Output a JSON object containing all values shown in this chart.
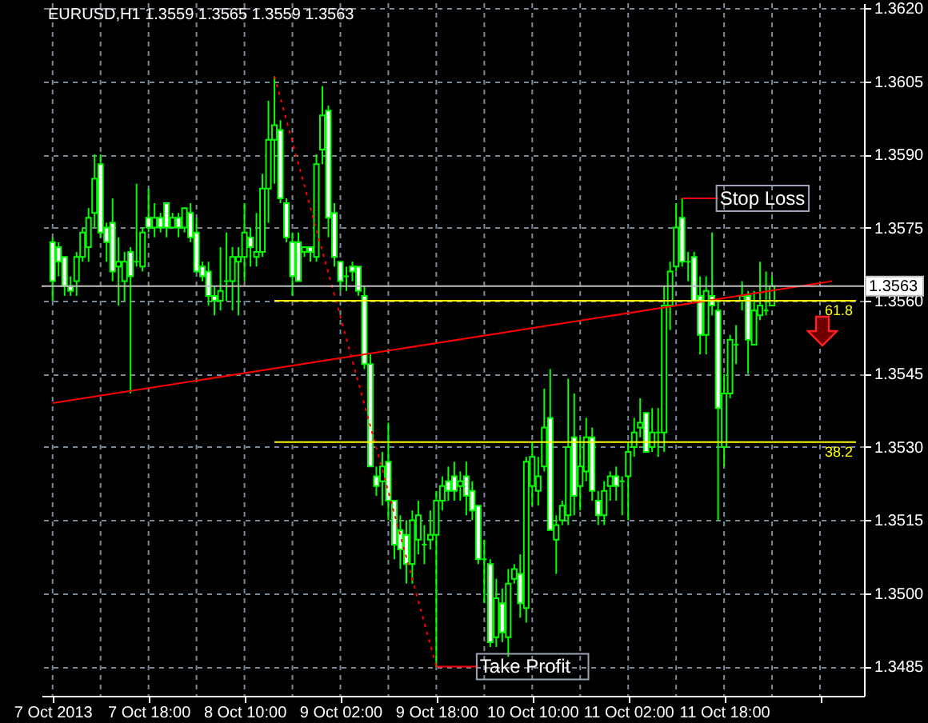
{
  "chart_data": {
    "type": "candlestick",
    "title": "EURUSD,H1 1.3559 1.3565 1.3559 1.3563",
    "x": [
      "2013-10-07T02:00",
      "2013-10-07T03:00",
      "2013-10-07T04:00",
      "2013-10-07T05:00",
      "2013-10-07T06:00",
      "2013-10-07T07:00",
      "2013-10-07T08:00",
      "2013-10-07T09:00",
      "2013-10-07T10:00",
      "2013-10-07T11:00",
      "2013-10-07T12:00",
      "2013-10-07T13:00",
      "2013-10-07T14:00",
      "2013-10-07T15:00",
      "2013-10-07T16:00",
      "2013-10-07T17:00",
      "2013-10-07T18:00",
      "2013-10-07T19:00",
      "2013-10-07T20:00",
      "2013-10-07T21:00",
      "2013-10-07T22:00",
      "2013-10-07T23:00",
      "2013-10-08T00:00",
      "2013-10-08T01:00",
      "2013-10-08T02:00",
      "2013-10-08T03:00",
      "2013-10-08T04:00",
      "2013-10-08T05:00",
      "2013-10-08T06:00",
      "2013-10-08T07:00",
      "2013-10-08T08:00",
      "2013-10-08T09:00",
      "2013-10-08T10:00",
      "2013-10-08T11:00",
      "2013-10-08T12:00",
      "2013-10-08T13:00",
      "2013-10-08T14:00",
      "2013-10-08T15:00",
      "2013-10-08T16:00",
      "2013-10-08T17:00",
      "2013-10-08T18:00",
      "2013-10-08T19:00",
      "2013-10-08T20:00",
      "2013-10-08T21:00",
      "2013-10-08T22:00",
      "2013-10-08T23:00",
      "2013-10-09T00:00",
      "2013-10-09T01:00",
      "2013-10-09T02:00",
      "2013-10-09T03:00",
      "2013-10-09T04:00",
      "2013-10-09T05:00",
      "2013-10-09T06:00",
      "2013-10-09T07:00",
      "2013-10-09T08:00",
      "2013-10-09T09:00",
      "2013-10-09T10:00",
      "2013-10-09T11:00",
      "2013-10-09T12:00",
      "2013-10-09T13:00",
      "2013-10-09T14:00",
      "2013-10-09T15:00",
      "2013-10-09T16:00",
      "2013-10-09T17:00",
      "2013-10-09T18:00",
      "2013-10-09T19:00",
      "2013-10-09T20:00",
      "2013-10-09T21:00",
      "2013-10-09T22:00",
      "2013-10-09T23:00",
      "2013-10-10T00:00",
      "2013-10-10T01:00",
      "2013-10-10T02:00",
      "2013-10-10T03:00",
      "2013-10-10T04:00",
      "2013-10-10T05:00",
      "2013-10-10T06:00",
      "2013-10-10T07:00",
      "2013-10-10T08:00",
      "2013-10-10T09:00",
      "2013-10-10T10:00",
      "2013-10-10T11:00",
      "2013-10-10T12:00",
      "2013-10-10T13:00",
      "2013-10-10T14:00",
      "2013-10-10T15:00",
      "2013-10-10T16:00",
      "2013-10-10T17:00",
      "2013-10-10T18:00",
      "2013-10-10T19:00",
      "2013-10-10T20:00",
      "2013-10-10T21:00",
      "2013-10-10T22:00",
      "2013-10-10T23:00",
      "2013-10-11T00:00",
      "2013-10-11T01:00",
      "2013-10-11T02:00",
      "2013-10-11T03:00",
      "2013-10-11T04:00",
      "2013-10-11T05:00",
      "2013-10-11T06:00",
      "2013-10-11T07:00",
      "2013-10-11T08:00",
      "2013-10-11T09:00",
      "2013-10-11T10:00",
      "2013-10-11T11:00",
      "2013-10-11T12:00",
      "2013-10-11T13:00",
      "2013-10-11T14:00",
      "2013-10-11T15:00",
      "2013-10-11T16:00",
      "2013-10-11T17:00",
      "2013-10-11T18:00",
      "2013-10-11T19:00",
      "2013-10-11T20:00",
      "2013-10-11T21:00",
      "2013-10-11T22:00",
      "2013-10-11T23:00",
      "2013-10-12T00:00",
      "2013-10-12T01:00",
      "2013-10-12T02:00"
    ],
    "series": [
      {
        "color": "#00ff00",
        "ohlc": [
          [
            1.3572,
            1.3573,
            1.356,
            1.3564
          ],
          [
            1.3571,
            1.3572,
            1.3565,
            1.3568
          ],
          [
            1.3569,
            1.3569,
            1.3561,
            1.3563
          ],
          [
            1.3563,
            1.3565,
            1.3561,
            1.3562
          ],
          [
            1.3564,
            1.357,
            1.3561,
            1.3569
          ],
          [
            1.3569,
            1.3575,
            1.3568,
            1.3574
          ],
          [
            1.3571,
            1.3579,
            1.3568,
            1.3577
          ],
          [
            1.3578,
            1.359,
            1.3575,
            1.3585
          ],
          [
            1.3588,
            1.359,
            1.3573,
            1.3574
          ],
          [
            1.3575,
            1.3576,
            1.3568,
            1.3572
          ],
          [
            1.3576,
            1.3581,
            1.3564,
            1.3566
          ],
          [
            1.3567,
            1.3573,
            1.3559,
            1.3568
          ],
          [
            1.3564,
            1.357,
            1.356,
            1.3568
          ],
          [
            1.357,
            1.3571,
            1.3541,
            1.3565
          ],
          [
            1.3568,
            1.3584,
            1.3567,
            1.3568
          ],
          [
            1.3567,
            1.3575,
            1.3566,
            1.3574
          ],
          [
            1.3577,
            1.3583,
            1.3574,
            1.3575
          ],
          [
            1.3575,
            1.358,
            1.3573,
            1.3577
          ],
          [
            1.3577,
            1.3578,
            1.3574,
            1.3575
          ],
          [
            1.358,
            1.358,
            1.3573,
            1.3575
          ],
          [
            1.3575,
            1.3578,
            1.3575,
            1.3577
          ],
          [
            1.3577,
            1.3578,
            1.3573,
            1.3575
          ],
          [
            1.3575,
            1.3579,
            1.3574,
            1.3579
          ],
          [
            1.3578,
            1.358,
            1.3572,
            1.3573
          ],
          [
            1.3574,
            1.3577,
            1.3566,
            1.3566
          ],
          [
            1.3567,
            1.3568,
            1.3564,
            1.3565
          ],
          [
            1.3566,
            1.3568,
            1.3559,
            1.3561
          ],
          [
            1.3561,
            1.3563,
            1.3557,
            1.356
          ],
          [
            1.356,
            1.3571,
            1.3558,
            1.3562
          ],
          [
            1.3564,
            1.3574,
            1.356,
            1.3564
          ],
          [
            1.3564,
            1.3571,
            1.3558,
            1.3569
          ],
          [
            1.3568,
            1.3571,
            1.3557,
            1.3569
          ],
          [
            1.3569,
            1.358,
            1.3564,
            1.3574
          ],
          [
            1.3573,
            1.3575,
            1.3567,
            1.3571
          ],
          [
            1.3569,
            1.3578,
            1.3567,
            1.357
          ],
          [
            1.357,
            1.3586,
            1.3569,
            1.3583
          ],
          [
            1.3583,
            1.3601,
            1.3576,
            1.3593
          ],
          [
            1.3593,
            1.3606,
            1.3584,
            1.3596
          ],
          [
            1.3595,
            1.3597,
            1.358,
            1.3581
          ],
          [
            1.358,
            1.3581,
            1.3572,
            1.3573
          ],
          [
            1.3572,
            1.3574,
            1.3561,
            1.3565
          ],
          [
            1.3572,
            1.3574,
            1.3564,
            1.3564
          ],
          [
            1.357,
            1.3571,
            1.3569,
            1.3571
          ],
          [
            1.3571,
            1.3571,
            1.3568,
            1.357
          ],
          [
            1.3569,
            1.359,
            1.3568,
            1.3588
          ],
          [
            1.3591,
            1.3604,
            1.3588,
            1.3598
          ],
          [
            1.3599,
            1.36,
            1.3573,
            1.3577
          ],
          [
            1.3578,
            1.358,
            1.3567,
            1.3569
          ],
          [
            1.3568,
            1.3568,
            1.3562,
            1.3564
          ],
          [
            1.3565,
            1.3567,
            1.3562,
            1.3565
          ],
          [
            1.3567,
            1.3568,
            1.3564,
            1.3566
          ],
          [
            1.3567,
            1.3567,
            1.3561,
            1.3562
          ],
          [
            1.3561,
            1.3563,
            1.3546,
            1.3547
          ],
          [
            1.3547,
            1.3549,
            1.3526,
            1.3526
          ],
          [
            1.3524,
            1.3526,
            1.352,
            1.3522
          ],
          [
            1.3523,
            1.3529,
            1.3518,
            1.3526
          ],
          [
            1.3527,
            1.3535,
            1.3515,
            1.3519
          ],
          [
            1.3519,
            1.3519,
            1.3507,
            1.351
          ],
          [
            1.3513,
            1.3516,
            1.3505,
            1.3509
          ],
          [
            1.3512,
            1.3515,
            1.3502,
            1.3506
          ],
          [
            1.3506,
            1.3517,
            1.3502,
            1.3515
          ],
          [
            1.3511,
            1.3519,
            1.3508,
            1.3516
          ],
          [
            1.351,
            1.3514,
            1.3506,
            1.351
          ],
          [
            1.3511,
            1.3517,
            1.3509,
            1.3512
          ],
          [
            1.3512,
            1.3521,
            1.3485,
            1.3519
          ],
          [
            1.3519,
            1.3524,
            1.3517,
            1.3522
          ],
          [
            1.3523,
            1.3526,
            1.3519,
            1.3521
          ],
          [
            1.3524,
            1.3527,
            1.3519,
            1.3521
          ],
          [
            1.3522,
            1.3525,
            1.3519,
            1.3523
          ],
          [
            1.3524,
            1.3527,
            1.3516,
            1.352
          ],
          [
            1.3521,
            1.3523,
            1.3515,
            1.3517
          ],
          [
            1.3518,
            1.3518,
            1.3506,
            1.3507
          ],
          [
            1.3507,
            1.3511,
            1.3498,
            1.3507
          ],
          [
            1.3506,
            1.3507,
            1.3489,
            1.349
          ],
          [
            1.3491,
            1.3503,
            1.3489,
            1.3499
          ],
          [
            1.3498,
            1.3501,
            1.349,
            1.3492
          ],
          [
            1.3491,
            1.3505,
            1.3487,
            1.3502
          ],
          [
            1.3503,
            1.3506,
            1.3502,
            1.3505
          ],
          [
            1.3504,
            1.3508,
            1.3495,
            1.3498
          ],
          [
            1.3497,
            1.3528,
            1.3494,
            1.3527
          ],
          [
            1.3522,
            1.3531,
            1.3518,
            1.3528
          ],
          [
            1.3521,
            1.3528,
            1.3518,
            1.3524
          ],
          [
            1.3526,
            1.3542,
            1.3525,
            1.3534
          ],
          [
            1.3536,
            1.3546,
            1.3513,
            1.3513
          ],
          [
            1.3511,
            1.3516,
            1.3504,
            1.3514
          ],
          [
            1.3515,
            1.3519,
            1.3514,
            1.3518
          ],
          [
            1.3516,
            1.3544,
            1.3514,
            1.353
          ],
          [
            1.3532,
            1.3541,
            1.3516,
            1.352
          ],
          [
            1.3522,
            1.3532,
            1.3517,
            1.3526
          ],
          [
            1.3525,
            1.3536,
            1.3523,
            1.3532
          ],
          [
            1.3532,
            1.3534,
            1.3519,
            1.3521
          ],
          [
            1.3519,
            1.3521,
            1.3514,
            1.3516
          ],
          [
            1.3516,
            1.3523,
            1.3514,
            1.3521
          ],
          [
            1.3522,
            1.3525,
            1.3519,
            1.3524
          ],
          [
            1.3524,
            1.3526,
            1.3519,
            1.3522
          ],
          [
            1.3523,
            1.3524,
            1.3516,
            1.3523
          ],
          [
            1.3524,
            1.3531,
            1.3515,
            1.3529
          ],
          [
            1.353,
            1.3536,
            1.3528,
            1.3533
          ],
          [
            1.3534,
            1.354,
            1.3532,
            1.3535
          ],
          [
            1.3537,
            1.3537,
            1.3529,
            1.3529
          ],
          [
            1.353,
            1.3538,
            1.3529,
            1.3533
          ],
          [
            1.3533,
            1.3538,
            1.3528,
            1.3533
          ],
          [
            1.3533,
            1.3563,
            1.3529,
            1.3559
          ],
          [
            1.3559,
            1.3568,
            1.3554,
            1.3566
          ],
          [
            1.3567,
            1.358,
            1.3566,
            1.3575
          ],
          [
            1.3577,
            1.3581,
            1.3567,
            1.3568
          ],
          [
            1.3568,
            1.357,
            1.3564,
            1.3568
          ],
          [
            1.3569,
            1.357,
            1.356,
            1.356
          ],
          [
            1.3561,
            1.3565,
            1.3549,
            1.3553
          ],
          [
            1.3553,
            1.3565,
            1.3549,
            1.3562
          ],
          [
            1.3561,
            1.3574,
            1.3557,
            1.3559
          ],
          [
            1.3558,
            1.356,
            1.3515,
            1.3538
          ],
          [
            1.353,
            1.3545,
            1.3526,
            1.3541
          ],
          [
            1.3541,
            1.3553,
            1.354,
            1.3552
          ],
          [
            1.3551,
            1.3555,
            1.3547,
            1.3551
          ],
          [
            1.356,
            1.3564,
            1.3558,
            1.3561
          ],
          [
            1.3561,
            1.3562,
            1.3545,
            1.3552
          ],
          [
            1.3551,
            1.3562,
            1.3551,
            1.3558
          ],
          [
            1.3557,
            1.3568,
            1.3556,
            1.3559
          ],
          [
            1.3558,
            1.3566,
            1.3557,
            1.3558
          ],
          [
            1.3559,
            1.3565,
            1.3559,
            1.3563
          ]
        ]
      },
      {
        "type": "line",
        "color": "#ff0000",
        "x": [
          "2013-10-07T02:00",
          "2013-10-12T12:00"
        ],
        "values": [
          1.3539,
          1.3564
        ]
      },
      {
        "type": "line",
        "color": "#ff0000",
        "line_style": "dotted",
        "x": [
          "2013-10-08T15:00",
          "2013-10-09T18:00"
        ],
        "values": [
          1.3606,
          1.3485
        ]
      },
      {
        "type": "line",
        "name": "61.8",
        "color": "#ffff00",
        "x": [
          "2013-10-08T15:00",
          "2013-10-12T16:00"
        ],
        "values": [
          1.356,
          1.356
        ]
      },
      {
        "type": "line",
        "name": "38.2",
        "color": "#ffff00",
        "x": [
          "2013-10-08T15:00",
          "2013-10-12T16:00"
        ],
        "values": [
          1.3531,
          1.3531
        ]
      },
      {
        "type": "line",
        "color": "#ff0000",
        "x": [
          "2013-10-11T11:00",
          "2013-10-11T17:00"
        ],
        "values": [
          1.3581,
          1.3581
        ]
      },
      {
        "type": "line",
        "color": "#ff0000",
        "x": [
          "2013-10-09T18:00",
          "2013-10-10T01:00"
        ],
        "values": [
          1.3485,
          1.3485
        ]
      }
    ],
    "ref_lines": [
      {
        "axis": "y",
        "value": 1.3563,
        "label": "1.3563",
        "color": "#c0c0c0"
      }
    ],
    "annotations": [
      {
        "text": "Stop Loss",
        "x": "2013-10-11T17:00",
        "y": 1.3581
      },
      {
        "text": "Take Profit",
        "x": "2013-10-10T01:00",
        "y": 1.3485
      }
    ],
    "xlim": [
      "2013-10-07T01:30",
      "2013-10-12T16:00"
    ],
    "xticks": [
      {
        "value": "2013-10-07T02:00",
        "label": "7 Oct 2013"
      },
      {
        "value": "2013-10-07T10:00",
        "label": null
      },
      {
        "value": "2013-10-07T18:00",
        "label": "7 Oct 18:00"
      },
      {
        "value": "2013-10-08T02:00",
        "label": null
      },
      {
        "value": "2013-10-08T10:00",
        "label": "8 Oct 10:00"
      },
      {
        "value": "2013-10-08T18:00",
        "label": null
      },
      {
        "value": "2013-10-09T02:00",
        "label": "9 Oct 02:00"
      },
      {
        "value": "2013-10-09T10:00",
        "label": null
      },
      {
        "value": "2013-10-09T18:00",
        "label": "9 Oct 18:00"
      },
      {
        "value": "2013-10-10T02:00",
        "label": null
      },
      {
        "value": "2013-10-10T10:00",
        "label": "10 Oct 10:00"
      },
      {
        "value": "2013-10-10T18:00",
        "label": null
      },
      {
        "value": "2013-10-11T02:00",
        "label": "11 Oct 02:00"
      },
      {
        "value": "2013-10-11T10:00",
        "label": null
      },
      {
        "value": "2013-10-11T18:00",
        "label": "11 Oct 18:00"
      },
      {
        "value": "2013-10-12T02:00",
        "label": null
      },
      {
        "value": "2013-10-12T10:00",
        "label": null
      }
    ],
    "ylim": [
      1.3479,
      1.3621
    ],
    "yticks": [
      1.3485,
      {
        "value": 1.35,
        "label": "1.3500"
      },
      1.3515,
      {
        "value": 1.353,
        "label": "1.3530"
      },
      1.3545,
      {
        "value": 1.356,
        "label": "1.3560"
      },
      1.3575,
      {
        "value": 1.359,
        "label": "1.3590"
      },
      1.3605,
      {
        "value": 1.362,
        "label": "1.3620"
      }
    ],
    "grid": true
  }
}
